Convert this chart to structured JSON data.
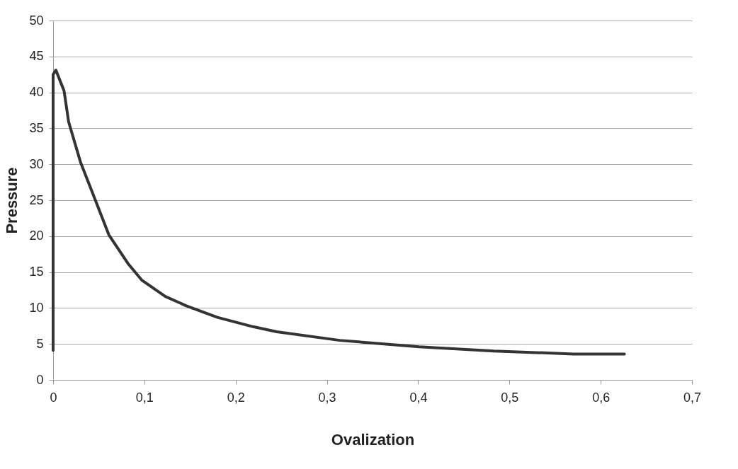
{
  "chart_data": {
    "type": "line",
    "xlabel": "Ovalization",
    "ylabel": "Pressure",
    "x": [
      0,
      0,
      0.003,
      0.012,
      0.017,
      0.03,
      0.046,
      0.061,
      0.082,
      0.097,
      0.123,
      0.146,
      0.18,
      0.219,
      0.245,
      0.314,
      0.401,
      0.483,
      0.529,
      0.57,
      0.626
    ],
    "series": [
      {
        "color": "#333333",
        "values": [
          4.1,
          42.5,
          43.1,
          40.2,
          35.9,
          30.3,
          25.1,
          20.2,
          16.2,
          13.9,
          11.6,
          10.3,
          8.7,
          7.4,
          6.7,
          5.5,
          4.6,
          4.0,
          3.8,
          3.6,
          3.6
        ]
      }
    ],
    "xlim": [
      0,
      0.7
    ],
    "xticks": [
      0,
      {
        "value": 0.1,
        "label": "0,1"
      },
      {
        "value": 0.2,
        "label": "0,2"
      },
      {
        "value": 0.3,
        "label": "0,3"
      },
      {
        "value": 0.4,
        "label": "0,4"
      },
      {
        "value": 0.5,
        "label": "0,5"
      },
      {
        "value": 0.6,
        "label": "0,6"
      },
      {
        "value": 0.7,
        "label": "0,7"
      }
    ],
    "ylim": [
      0,
      50
    ],
    "yticks": [
      0,
      5,
      10,
      15,
      20,
      25,
      30,
      35,
      40,
      45,
      50
    ],
    "grid": "y",
    "marker": "none",
    "line_style": "solid"
  }
}
